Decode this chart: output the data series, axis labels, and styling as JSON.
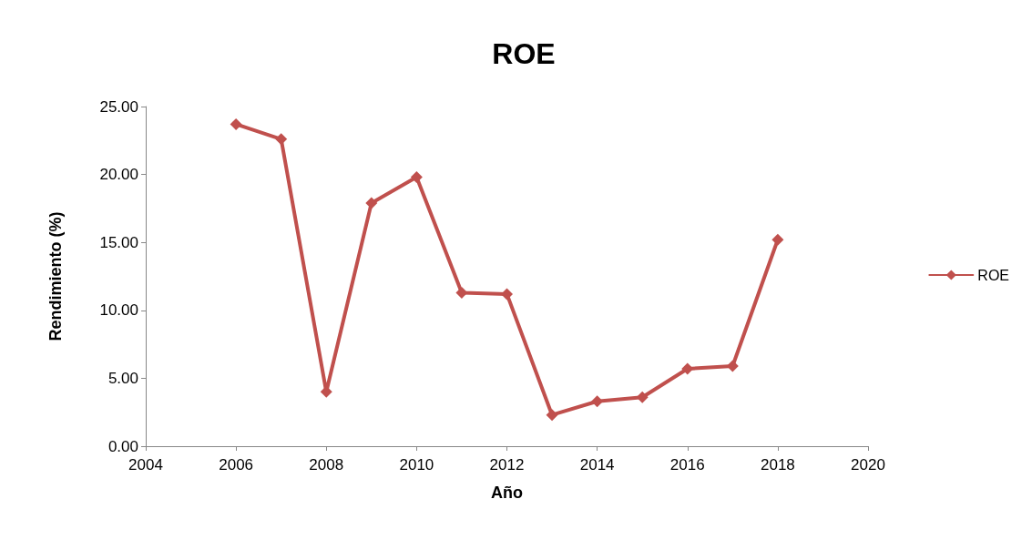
{
  "chart_data": {
    "type": "line",
    "title": "ROE",
    "xlabel": "Año",
    "ylabel": "Rendimiento (%)",
    "x": [
      2006,
      2007,
      2008,
      2009,
      2010,
      2011,
      2012,
      2013,
      2014,
      2015,
      2016,
      2017,
      2018
    ],
    "series": [
      {
        "name": "ROE",
        "color": "#c0504d",
        "values": [
          23.7,
          22.6,
          4.0,
          17.9,
          19.8,
          11.3,
          11.2,
          2.3,
          3.3,
          3.6,
          5.7,
          5.9,
          15.2
        ]
      }
    ],
    "xlim": [
      2004,
      2020
    ],
    "xticks": [
      2004,
      2006,
      2008,
      2010,
      2012,
      2014,
      2016,
      2018,
      2020
    ],
    "ylim": [
      0,
      25
    ],
    "yticks": [
      {
        "value": 0,
        "label": "0.00"
      },
      {
        "value": 5,
        "label": "5.00"
      },
      {
        "value": 10,
        "label": "10.00"
      },
      {
        "value": 15,
        "label": "15.00"
      },
      {
        "value": 20,
        "label": "20.00"
      },
      {
        "value": 25,
        "label": "25.00"
      }
    ],
    "grid": false,
    "legend": "right",
    "marker": "diamond",
    "line_style": "solid"
  }
}
